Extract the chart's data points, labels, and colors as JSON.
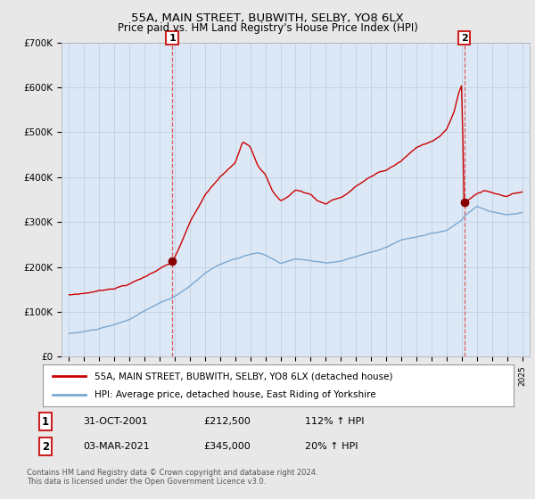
{
  "title": "55A, MAIN STREET, BUBWITH, SELBY, YO8 6LX",
  "subtitle": "Price paid vs. HM Land Registry's House Price Index (HPI)",
  "legend_line1": "55A, MAIN STREET, BUBWITH, SELBY, YO8 6LX (detached house)",
  "legend_line2": "HPI: Average price, detached house, East Riding of Yorkshire",
  "annotation1_label": "1",
  "annotation1_date": "31-OCT-2001",
  "annotation1_price": "£212,500",
  "annotation1_hpi": "112% ↑ HPI",
  "annotation2_label": "2",
  "annotation2_date": "03-MAR-2021",
  "annotation2_price": "£345,000",
  "annotation2_hpi": "20% ↑ HPI",
  "footer1": "Contains HM Land Registry data © Crown copyright and database right 2024.",
  "footer2": "This data is licensed under the Open Government Licence v3.0.",
  "ylim": [
    0,
    700000
  ],
  "yticks": [
    0,
    100000,
    200000,
    300000,
    400000,
    500000,
    600000,
    700000
  ],
  "ytick_labels": [
    "£0",
    "£100K",
    "£200K",
    "£300K",
    "£400K",
    "£500K",
    "£600K",
    "£700K"
  ],
  "background_color": "#e8e8e8",
  "plot_background": "#dce8f5",
  "red_color": "#cc0000",
  "blue_color": "#7aa8d2",
  "marker1_x": 2001.83,
  "marker1_y": 212500,
  "marker2_x": 2021.17,
  "marker2_y": 345000,
  "vline1_x": 2001.83,
  "vline2_x": 2021.17,
  "x_min": 1994.5,
  "x_max": 2025.5
}
